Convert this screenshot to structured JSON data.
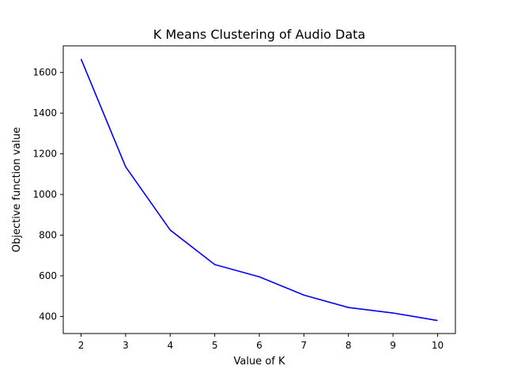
{
  "chart_data": {
    "type": "line",
    "title": "K Means Clustering of Audio Data",
    "xlabel": "Value of K",
    "ylabel": "Objective function value",
    "x": [
      2,
      3,
      4,
      5,
      6,
      7,
      8,
      9,
      10
    ],
    "series": [
      {
        "values": [
          1666,
          1136,
          825,
          655,
          595,
          505,
          444,
          417,
          380
        ],
        "color": "#0000ff"
      }
    ],
    "xlim": [
      1.6,
      10.4
    ],
    "ylim": [
      316,
      1731
    ],
    "xticks": [
      2,
      3,
      4,
      5,
      6,
      7,
      8,
      9,
      10
    ],
    "yticks": [
      400,
      600,
      800,
      1000,
      1200,
      1400,
      1600
    ],
    "grid": false,
    "legend": false
  }
}
